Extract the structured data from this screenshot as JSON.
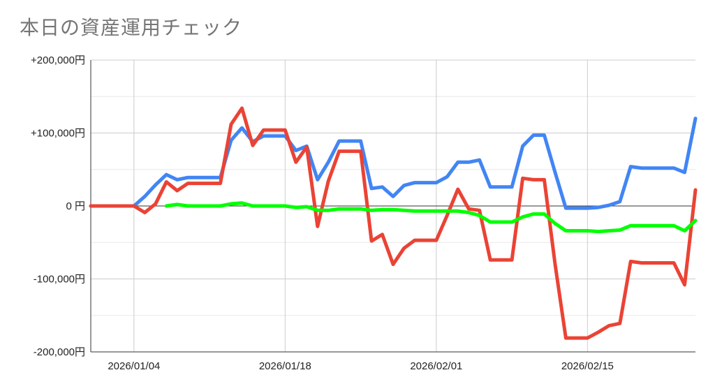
{
  "title": "本日の資産運用チェック",
  "chart_data": {
    "type": "line",
    "title": "本日の資産運用チェック",
    "xlabel": "",
    "ylabel": "",
    "x_range": [
      "2025-12-31",
      "2026-02-25"
    ],
    "ylim": [
      -200000,
      200000
    ],
    "y_ticks": [
      {
        "value": 200000,
        "label": "+200,000円"
      },
      {
        "value": 100000,
        "label": "+100,000円"
      },
      {
        "value": 0,
        "label": "0 円"
      },
      {
        "value": -100000,
        "label": "-100,000円"
      },
      {
        "value": -200000,
        "label": "-200,000円"
      }
    ],
    "x_ticks": [
      {
        "date": "2026-01-04",
        "label": "2026/01/04"
      },
      {
        "date": "2026-01-18",
        "label": "2026/01/18"
      },
      {
        "date": "2026-02-01",
        "label": "2026/02/01"
      },
      {
        "date": "2026-02-15",
        "label": "2026/02/15"
      }
    ],
    "grid": true,
    "legend": "none",
    "series": [
      {
        "color": "#4285f4",
        "points": [
          [
            "2025-12-31",
            0
          ],
          [
            "2026-01-01",
            0
          ],
          [
            "2026-01-02",
            0
          ],
          [
            "2026-01-03",
            0
          ],
          [
            "2026-01-04",
            0
          ],
          [
            "2026-01-05",
            13000
          ],
          [
            "2026-01-06",
            29000
          ],
          [
            "2026-01-07",
            43000
          ],
          [
            "2026-01-08",
            36000
          ],
          [
            "2026-01-09",
            39000
          ],
          [
            "2026-01-10",
            39000
          ],
          [
            "2026-01-11",
            39000
          ],
          [
            "2026-01-12",
            39000
          ],
          [
            "2026-01-13",
            90000
          ],
          [
            "2026-01-14",
            107000
          ],
          [
            "2026-01-15",
            88000
          ],
          [
            "2026-01-16",
            96000
          ],
          [
            "2026-01-17",
            96000
          ],
          [
            "2026-01-18",
            96000
          ],
          [
            "2026-01-19",
            76000
          ],
          [
            "2026-01-20",
            82000
          ],
          [
            "2026-01-21",
            36000
          ],
          [
            "2026-01-22",
            60000
          ],
          [
            "2026-01-23",
            89000
          ],
          [
            "2026-01-24",
            89000
          ],
          [
            "2026-01-25",
            89000
          ],
          [
            "2026-01-26",
            24000
          ],
          [
            "2026-01-27",
            26000
          ],
          [
            "2026-01-28",
            13000
          ],
          [
            "2026-01-29",
            28000
          ],
          [
            "2026-01-30",
            32000
          ],
          [
            "2026-01-31",
            32000
          ],
          [
            "2026-02-01",
            32000
          ],
          [
            "2026-02-02",
            40000
          ],
          [
            "2026-02-03",
            60000
          ],
          [
            "2026-02-04",
            60000
          ],
          [
            "2026-02-05",
            63000
          ],
          [
            "2026-02-06",
            26000
          ],
          [
            "2026-02-07",
            26000
          ],
          [
            "2026-02-08",
            26000
          ],
          [
            "2026-02-09",
            82000
          ],
          [
            "2026-02-10",
            97000
          ],
          [
            "2026-02-11",
            97000
          ],
          [
            "2026-02-12",
            46000
          ],
          [
            "2026-02-13",
            -3000
          ],
          [
            "2026-02-14",
            -3000
          ],
          [
            "2026-02-15",
            -3000
          ],
          [
            "2026-02-16",
            -2000
          ],
          [
            "2026-02-17",
            1000
          ],
          [
            "2026-02-18",
            6000
          ],
          [
            "2026-02-19",
            54000
          ],
          [
            "2026-02-20",
            52000
          ],
          [
            "2026-02-21",
            52000
          ],
          [
            "2026-02-22",
            52000
          ],
          [
            "2026-02-23",
            52000
          ],
          [
            "2026-02-24",
            46000
          ],
          [
            "2026-02-25",
            120000
          ]
        ]
      },
      {
        "color": "#ea4335",
        "points": [
          [
            "2025-12-31",
            0
          ],
          [
            "2026-01-01",
            0
          ],
          [
            "2026-01-02",
            0
          ],
          [
            "2026-01-03",
            0
          ],
          [
            "2026-01-04",
            0
          ],
          [
            "2026-01-05",
            -9000
          ],
          [
            "2026-01-06",
            3000
          ],
          [
            "2026-01-07",
            33000
          ],
          [
            "2026-01-08",
            21000
          ],
          [
            "2026-01-09",
            31000
          ],
          [
            "2026-01-10",
            31000
          ],
          [
            "2026-01-11",
            31000
          ],
          [
            "2026-01-12",
            31000
          ],
          [
            "2026-01-13",
            112000
          ],
          [
            "2026-01-14",
            134000
          ],
          [
            "2026-01-15",
            83000
          ],
          [
            "2026-01-16",
            104000
          ],
          [
            "2026-01-17",
            104000
          ],
          [
            "2026-01-18",
            104000
          ],
          [
            "2026-01-19",
            60000
          ],
          [
            "2026-01-20",
            81000
          ],
          [
            "2026-01-21",
            -28000
          ],
          [
            "2026-01-22",
            34000
          ],
          [
            "2026-01-23",
            75000
          ],
          [
            "2026-01-24",
            75000
          ],
          [
            "2026-01-25",
            75000
          ],
          [
            "2026-01-26",
            -48000
          ],
          [
            "2026-01-27",
            -39000
          ],
          [
            "2026-01-28",
            -80000
          ],
          [
            "2026-01-29",
            -58000
          ],
          [
            "2026-01-30",
            -47000
          ],
          [
            "2026-01-31",
            -47000
          ],
          [
            "2026-02-01",
            -47000
          ],
          [
            "2026-02-02",
            -13000
          ],
          [
            "2026-02-03",
            23000
          ],
          [
            "2026-02-04",
            -4000
          ],
          [
            "2026-02-05",
            -6000
          ],
          [
            "2026-02-06",
            -74000
          ],
          [
            "2026-02-07",
            -74000
          ],
          [
            "2026-02-08",
            -74000
          ],
          [
            "2026-02-09",
            38000
          ],
          [
            "2026-02-10",
            36000
          ],
          [
            "2026-02-11",
            36000
          ],
          [
            "2026-02-12",
            -80000
          ],
          [
            "2026-02-13",
            -181000
          ],
          [
            "2026-02-14",
            -181000
          ],
          [
            "2026-02-15",
            -181000
          ],
          [
            "2026-02-16",
            -173000
          ],
          [
            "2026-02-17",
            -164000
          ],
          [
            "2026-02-18",
            -161000
          ],
          [
            "2026-02-19",
            -76000
          ],
          [
            "2026-02-20",
            -78000
          ],
          [
            "2026-02-21",
            -78000
          ],
          [
            "2026-02-22",
            -78000
          ],
          [
            "2026-02-23",
            -78000
          ],
          [
            "2026-02-24",
            -108000
          ],
          [
            "2026-02-25",
            22000
          ]
        ]
      },
      {
        "color": "#00ff00",
        "points": [
          [
            "2026-01-07",
            0
          ],
          [
            "2026-01-08",
            2000
          ],
          [
            "2026-01-09",
            0
          ],
          [
            "2026-01-10",
            0
          ],
          [
            "2026-01-11",
            0
          ],
          [
            "2026-01-12",
            0
          ],
          [
            "2026-01-13",
            3000
          ],
          [
            "2026-01-14",
            4000
          ],
          [
            "2026-01-15",
            0
          ],
          [
            "2026-01-16",
            0
          ],
          [
            "2026-01-17",
            0
          ],
          [
            "2026-01-18",
            0
          ],
          [
            "2026-01-19",
            -2000
          ],
          [
            "2026-01-20",
            -1000
          ],
          [
            "2026-01-21",
            -6000
          ],
          [
            "2026-01-22",
            -6000
          ],
          [
            "2026-01-23",
            -4000
          ],
          [
            "2026-01-24",
            -4000
          ],
          [
            "2026-01-25",
            -4000
          ],
          [
            "2026-01-26",
            -6000
          ],
          [
            "2026-01-27",
            -5000
          ],
          [
            "2026-01-28",
            -5000
          ],
          [
            "2026-01-29",
            -6000
          ],
          [
            "2026-01-30",
            -7000
          ],
          [
            "2026-01-31",
            -7000
          ],
          [
            "2026-02-01",
            -7000
          ],
          [
            "2026-02-02",
            -7000
          ],
          [
            "2026-02-03",
            -7000
          ],
          [
            "2026-02-04",
            -9000
          ],
          [
            "2026-02-05",
            -13000
          ],
          [
            "2026-02-06",
            -22000
          ],
          [
            "2026-02-07",
            -22000
          ],
          [
            "2026-02-08",
            -22000
          ],
          [
            "2026-02-09",
            -15000
          ],
          [
            "2026-02-10",
            -11000
          ],
          [
            "2026-02-11",
            -11000
          ],
          [
            "2026-02-12",
            -24000
          ],
          [
            "2026-02-13",
            -34000
          ],
          [
            "2026-02-14",
            -34000
          ],
          [
            "2026-02-15",
            -34000
          ],
          [
            "2026-02-16",
            -35000
          ],
          [
            "2026-02-17",
            -34000
          ],
          [
            "2026-02-18",
            -33000
          ],
          [
            "2026-02-19",
            -27000
          ],
          [
            "2026-02-20",
            -27000
          ],
          [
            "2026-02-21",
            -27000
          ],
          [
            "2026-02-22",
            -27000
          ],
          [
            "2026-02-23",
            -27000
          ],
          [
            "2026-02-24",
            -34000
          ],
          [
            "2026-02-25",
            -20000
          ]
        ]
      }
    ]
  }
}
